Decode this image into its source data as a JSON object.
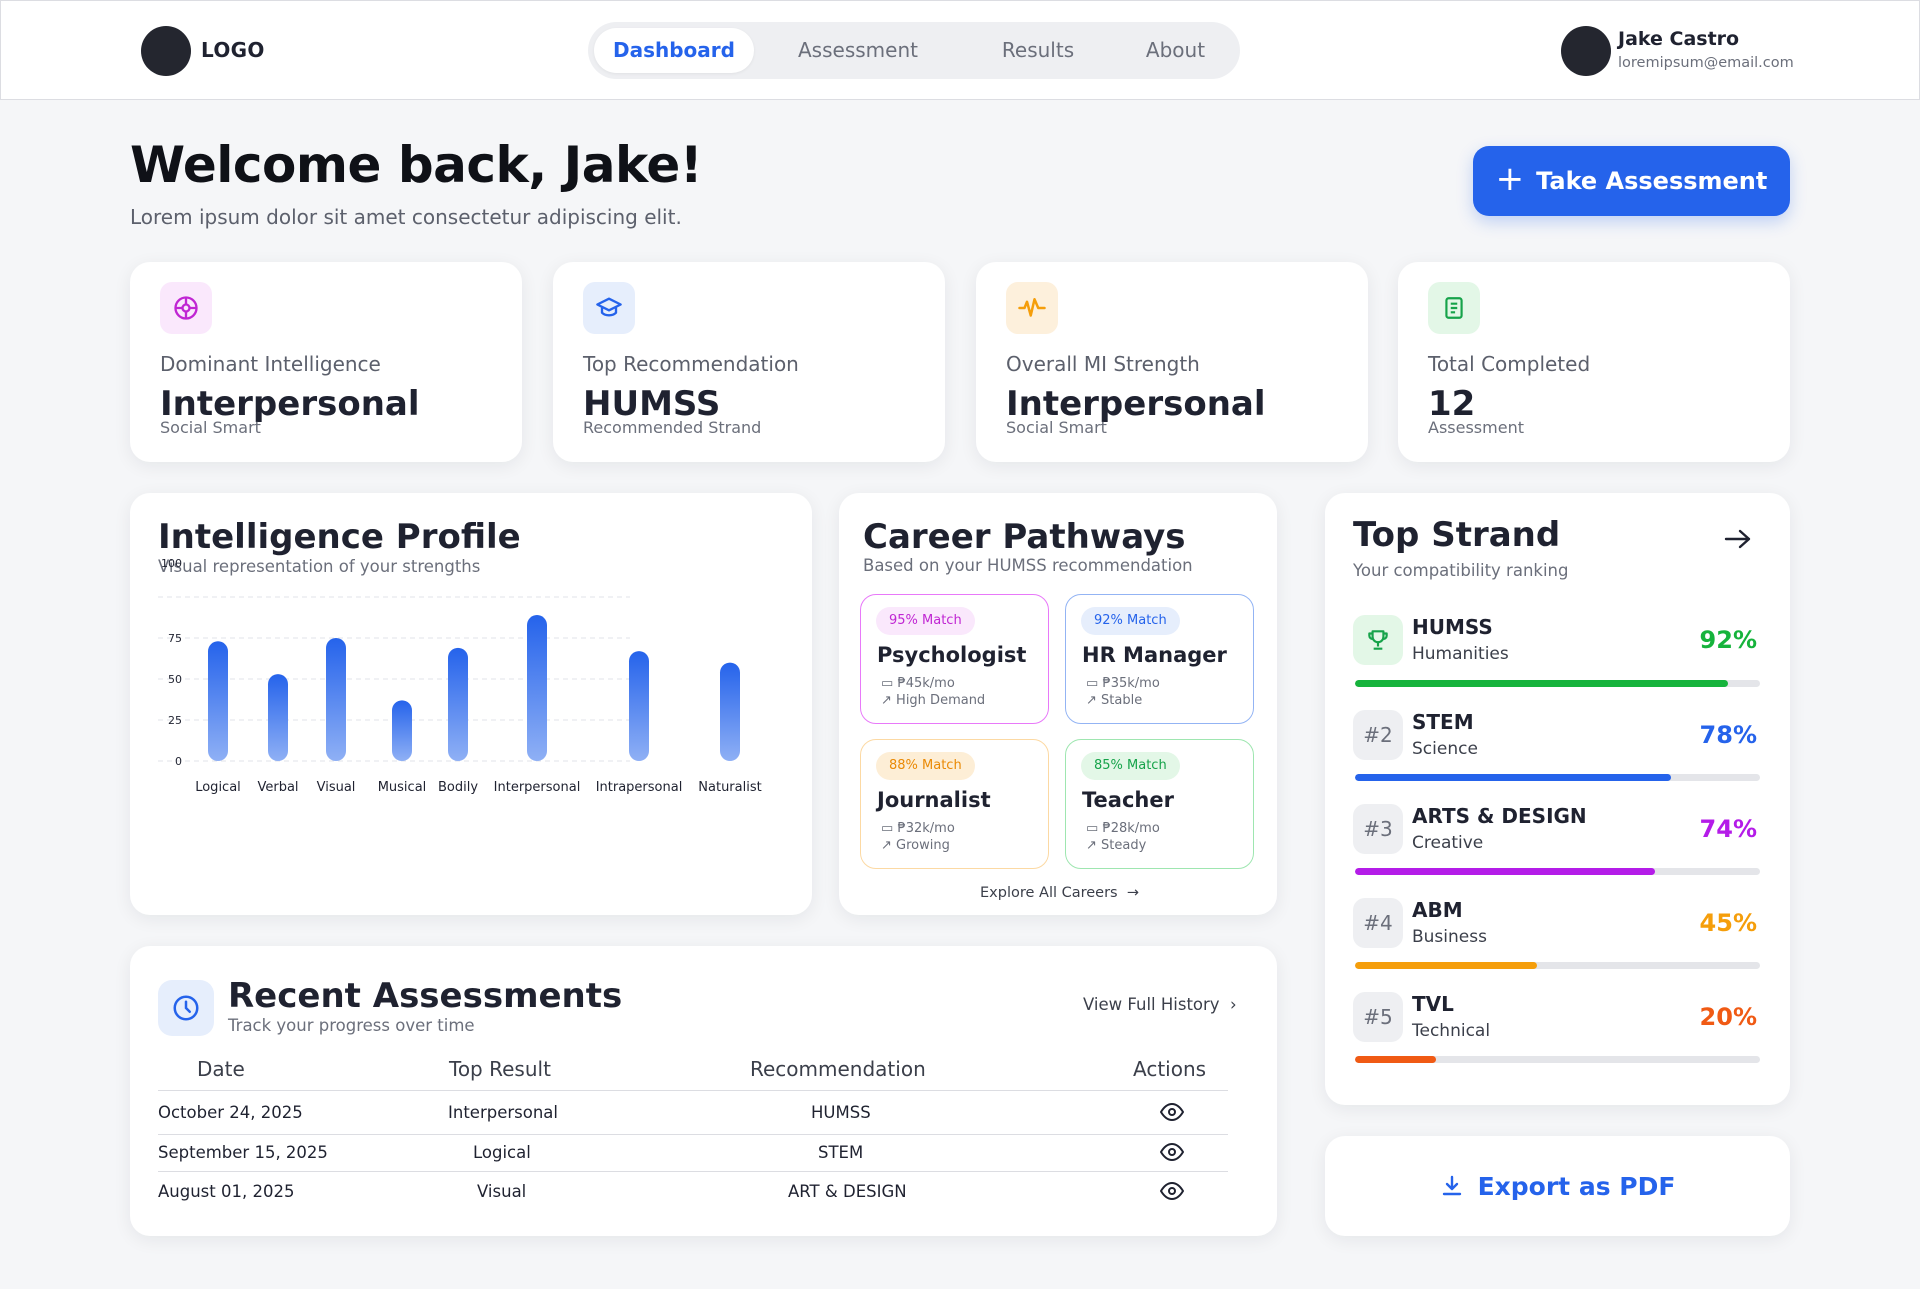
{
  "nav": {
    "logo": "LOGO",
    "items": [
      "Dashboard",
      "Assessment",
      "Results",
      "About"
    ],
    "active_index": 0,
    "user_name": "Jake Castro",
    "user_email": "loremipsum@email.com"
  },
  "header": {
    "title": "Welcome back, Jake!",
    "subtitle": "Lorem ipsum dolor sit amet consectetur adipiscing elit.",
    "cta_label": "Take Assessment"
  },
  "stats": [
    {
      "label": "Dominant Intelligence",
      "value": "Interpersonal",
      "sub": "Social Smart",
      "icon": "brain-icon",
      "color": "#c026d3",
      "bg": "#fae8fc"
    },
    {
      "label": "Top Recommendation",
      "value": "HUMSS",
      "sub": "Recommended Strand",
      "icon": "graduation-cap-icon",
      "color": "#2563eb",
      "bg": "#e6eefc"
    },
    {
      "label": "Overall MI Strength",
      "value": "Interpersonal",
      "sub": "Social Smart",
      "icon": "pulse-icon",
      "color": "#f59e0b",
      "bg": "#fdf0dc"
    },
    {
      "label": "Total Completed",
      "value": "12",
      "sub": "Assessment",
      "icon": "clipboard-icon",
      "color": "#16a34a",
      "bg": "#e3f7e7"
    }
  ],
  "intelligence": {
    "title": "Intelligence Profile",
    "subtitle": "Visual representation of your strengths"
  },
  "chart_data": {
    "type": "bar",
    "categories": [
      "Logical",
      "Verbal",
      "Visual",
      "Musical",
      "Bodily",
      "Interpersonal",
      "Intrapersonal",
      "Naturalist"
    ],
    "values": [
      73,
      53,
      75,
      37,
      69,
      89,
      67,
      60
    ],
    "yticks": [
      0,
      25,
      50,
      75,
      100
    ],
    "ylim": [
      0,
      100
    ],
    "grid": true,
    "bar_color": "#2563eb"
  },
  "careers": {
    "title": "Career Pathways",
    "subtitle": "Based on your HUMSS recommendation",
    "explore_label": "Explore All Careers",
    "items": [
      {
        "match": "95% Match",
        "job": "Psychologist",
        "salary": "₱45k/mo",
        "trend": "High Demand",
        "border": "#e879f9",
        "badge_bg": "#fae8fc",
        "badge_fg": "#c026d3"
      },
      {
        "match": "92% Match",
        "job": "HR Manager",
        "salary": "₱35k/mo",
        "trend": "Stable",
        "border": "#93b4f4",
        "badge_bg": "#e6eefc",
        "badge_fg": "#2563eb"
      },
      {
        "match": "88% Match",
        "job": "Journalist",
        "salary": "₱32k/mo",
        "trend": "Growing",
        "border": "#fcd9a3",
        "badge_bg": "#fdeed6",
        "badge_fg": "#ea8a06"
      },
      {
        "match": "85% Match",
        "job": "Teacher",
        "salary": "₱28k/mo",
        "trend": "Steady",
        "border": "#9ee6b0",
        "badge_bg": "#e3f7e7",
        "badge_fg": "#16a34a"
      }
    ]
  },
  "strand": {
    "title": "Top Strand",
    "subtitle": "Your compatibility ranking",
    "items": [
      {
        "rank": "",
        "icon": "trophy-icon",
        "name": "HUMSS",
        "cat": "Humanities",
        "pct": "92%",
        "value": 0.92,
        "color": "#16b33c"
      },
      {
        "rank": "#2",
        "name": "STEM",
        "cat": "Science",
        "pct": "78%",
        "value": 0.78,
        "color": "#2563eb"
      },
      {
        "rank": "#3",
        "name": "ARTS & DESIGN",
        "cat": "Creative",
        "pct": "74%",
        "value": 0.74,
        "color": "#b41ce8"
      },
      {
        "rank": "#4",
        "name": "ABM",
        "cat": "Business",
        "pct": "45%",
        "value": 0.45,
        "color": "#f59e0b"
      },
      {
        "rank": "#5",
        "name": "TVL",
        "cat": "Technical",
        "pct": "20%",
        "value": 0.2,
        "color": "#f05a14"
      }
    ]
  },
  "export_label": "Export as PDF",
  "recent": {
    "title": "Recent Assessments",
    "subtitle": "Track your progress over time",
    "view_history": "View Full History",
    "columns": [
      "Date",
      "Top Result",
      "Recommendation",
      "Actions"
    ],
    "rows": [
      {
        "date": "October 24, 2025",
        "result": "Interpersonal",
        "rec": "HUMSS"
      },
      {
        "date": "September 15, 2025",
        "result": "Logical",
        "rec": "STEM"
      },
      {
        "date": "August 01, 2025",
        "result": "Visual",
        "rec": "ART & DESIGN"
      }
    ]
  }
}
